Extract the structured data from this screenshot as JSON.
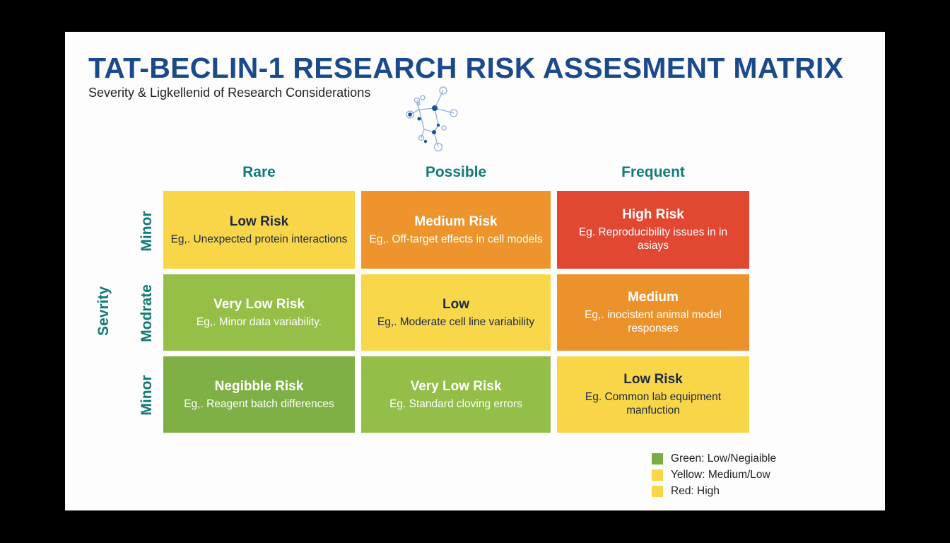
{
  "title": "TAT-BECLIN-1 RESEARCH RISK ASSESMENT MATRIX",
  "subtitle": "Severity & Ligkellenid of Research Considerations",
  "icon": "molecule-network-icon",
  "axis": {
    "severity_label": "Sevrity"
  },
  "columns": [
    "Rare",
    "Possible",
    "Frequent"
  ],
  "rows": [
    {
      "label": "Minor",
      "cells": [
        {
          "title": "Low Risk",
          "desc": "Eg,. Unexpected protein interactions",
          "color": "#f8d648",
          "text": "dark"
        },
        {
          "title": "Medium Risk",
          "desc": "Eg,. Off-target effects in cell models",
          "color": "#ed952c",
          "text": "light"
        },
        {
          "title": "High Risk",
          "desc": "Eg. Reproducibility issues in in asiays",
          "color": "#e24732",
          "text": "light"
        }
      ]
    },
    {
      "label": "Modrate",
      "cells": [
        {
          "title": "Very Low Risk",
          "desc": "Eg,. Minor data variability.",
          "color": "#96bf48",
          "text": "light"
        },
        {
          "title": "Low",
          "desc": "Eg,. Moderate cell line variability",
          "color": "#f8d84a",
          "text": "dark"
        },
        {
          "title": "Medium",
          "desc": "Eg,. inocistent animal model responses",
          "color": "#ec922a",
          "text": "light"
        }
      ]
    },
    {
      "label": "Minor",
      "cells": [
        {
          "title": "Negibble Risk",
          "desc": "Eg,. Reagent batch differences",
          "color": "#7fb046",
          "text": "light"
        },
        {
          "title": "Very Low Risk",
          "desc": "Eg. Standard cloving errors",
          "color": "#93be48",
          "text": "light"
        },
        {
          "title": "Low Risk",
          "desc": "Eg. Common lab equipment manfuction",
          "color": "#f8d648",
          "text": "dark"
        }
      ]
    }
  ],
  "legend": [
    {
      "label": "Green: Low/Negiaible",
      "color": "#7aad46"
    },
    {
      "label": "Yellow: Medium/Low",
      "color": "#f8d648"
    },
    {
      "label": "Red: High",
      "color": "#f8d648"
    }
  ]
}
